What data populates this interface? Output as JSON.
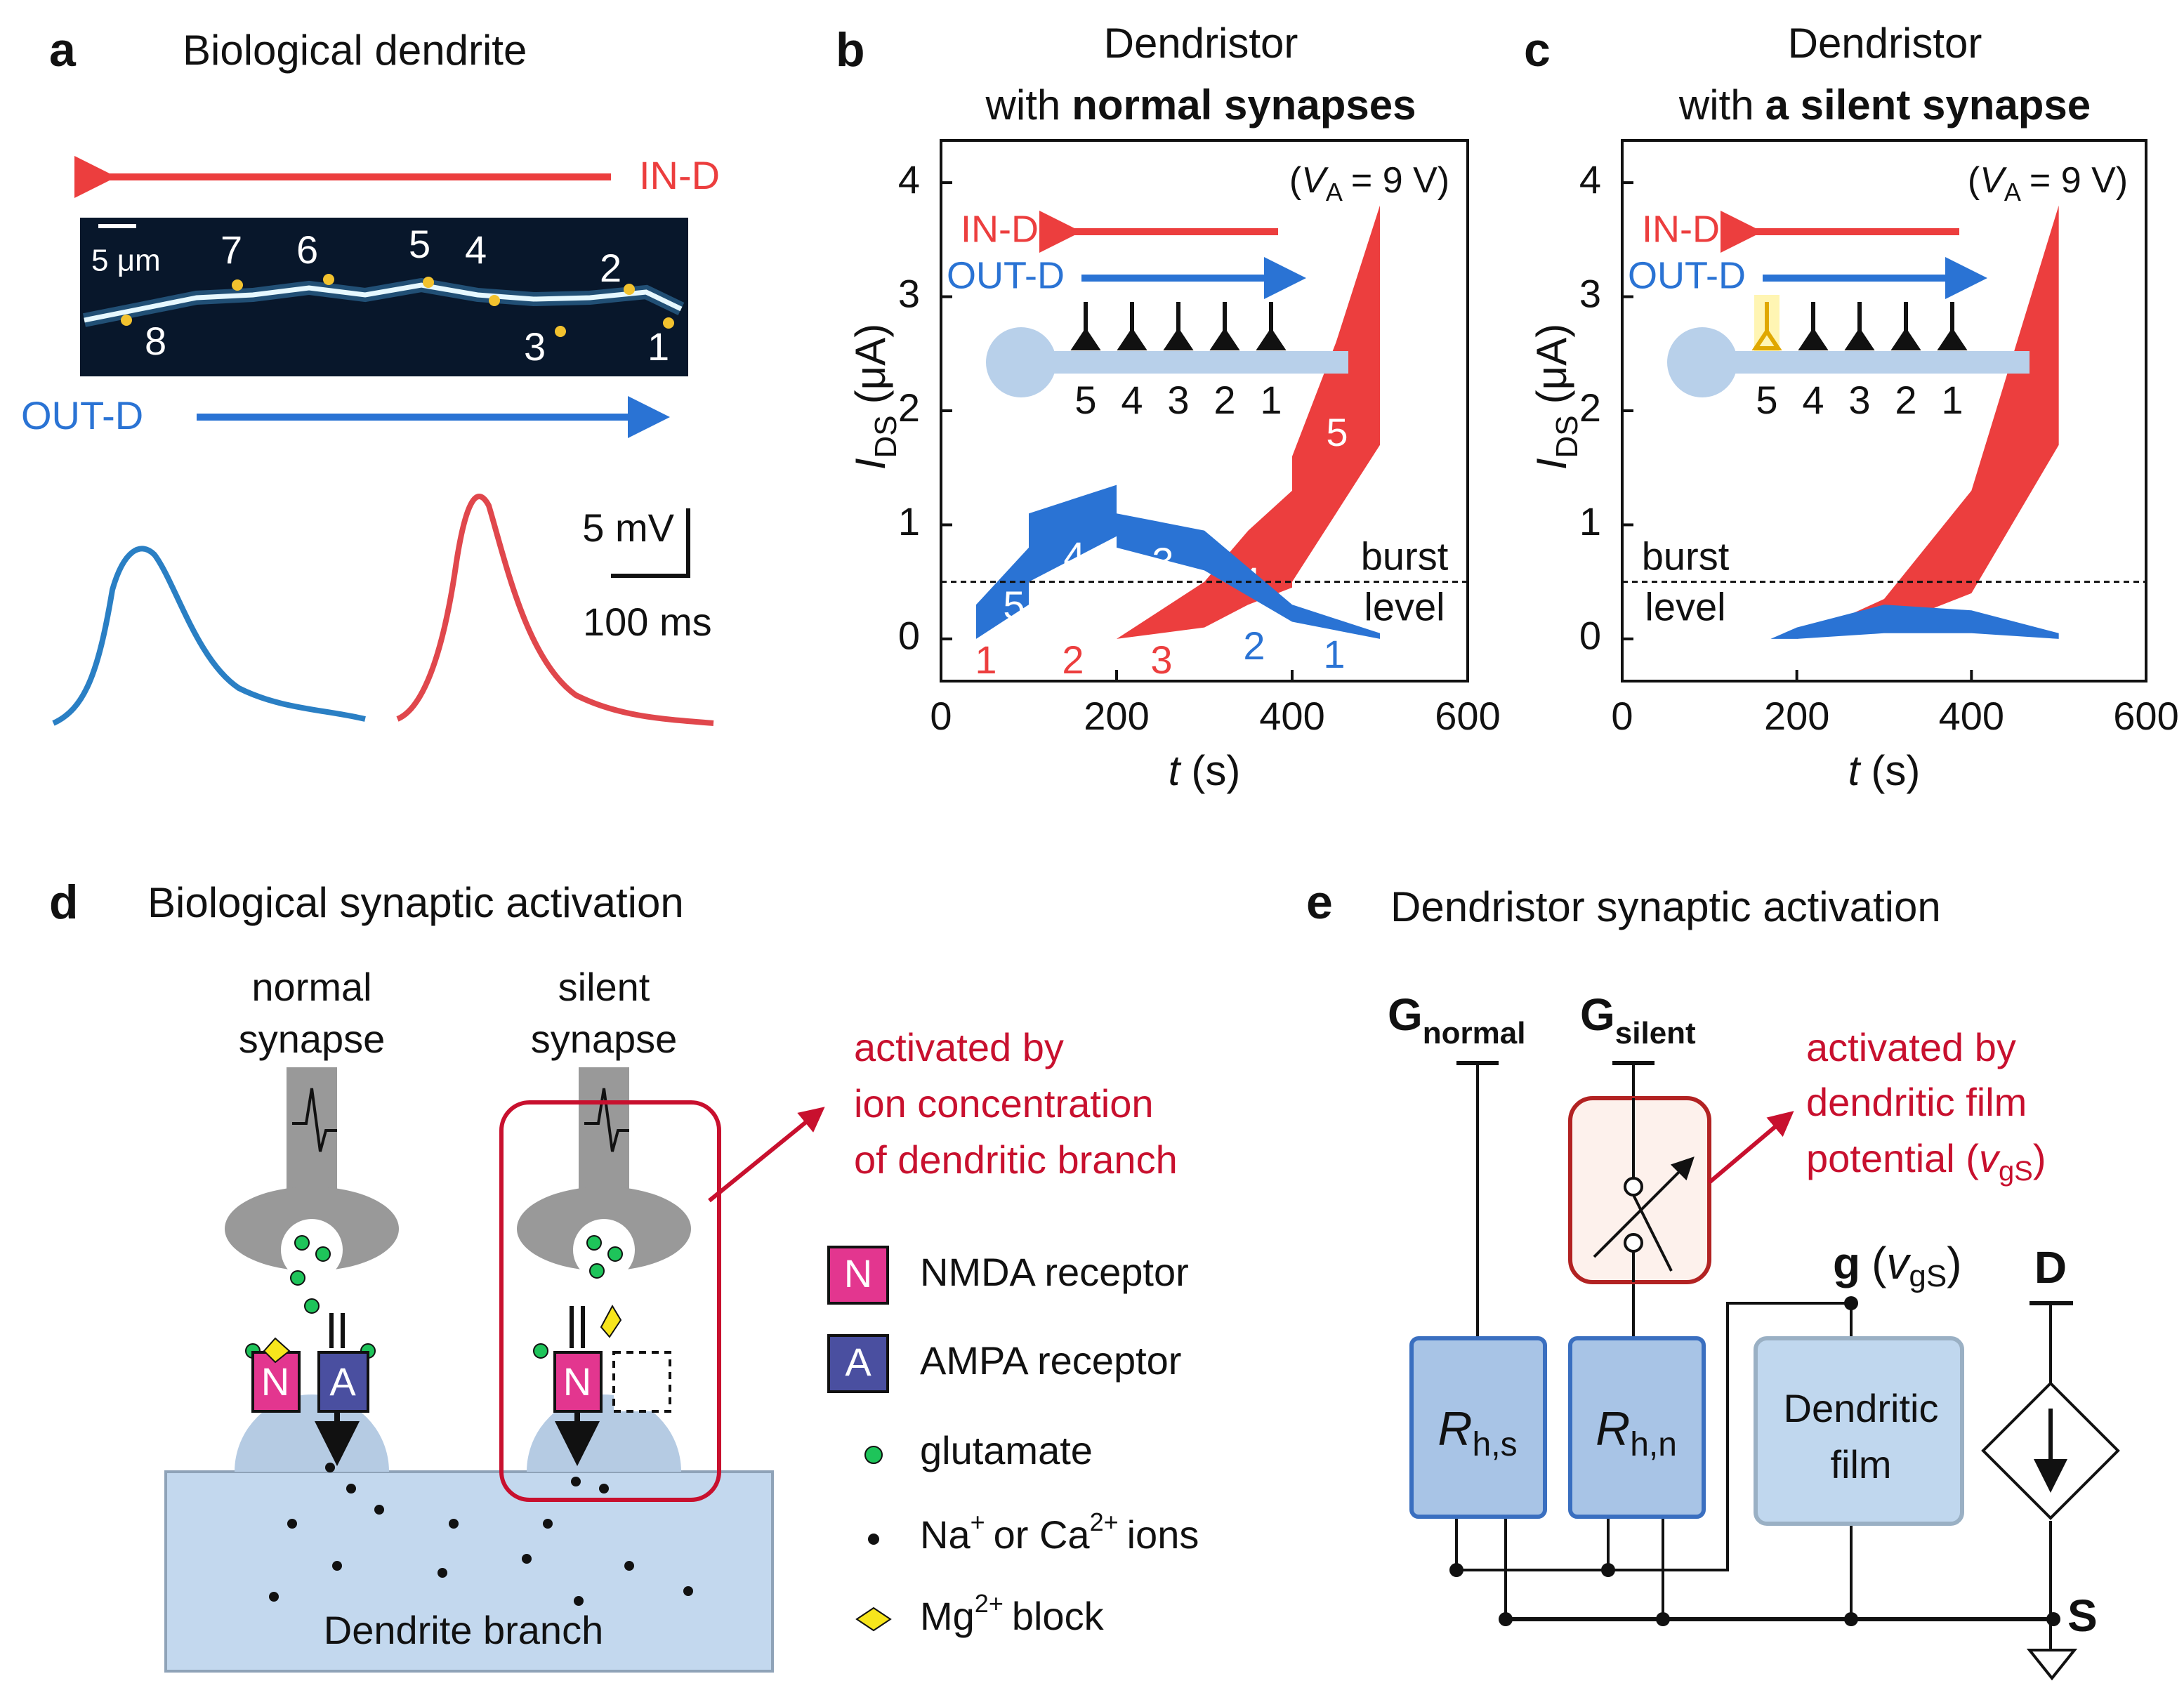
{
  "panel_a": {
    "letter": "a",
    "title": "Biological dendrite",
    "in_d": "IN-D",
    "out_d": "OUT-D",
    "scale": "5 μm",
    "spine_labels": [
      "1",
      "2",
      "3",
      "4",
      "5",
      "6",
      "7",
      "8"
    ],
    "scale_v": "5 mV",
    "scale_t": "100 ms"
  },
  "chart_data": [
    {
      "type": "area",
      "letter": "b",
      "title": "Dendristor",
      "subtitle_prefix": "with",
      "subtitle_bold": "normal synapses",
      "ylabel": {
        "symbol": "I",
        "sub": "DS",
        "unit": "(μA)"
      },
      "xlabel": {
        "symbol": "t",
        "unit": "(s)"
      },
      "annotation": {
        "prefix": "(",
        "symbol": "V",
        "sub": "A",
        "rest": "= 9 V)"
      },
      "xlim": [
        0,
        600
      ],
      "ylim": [
        -0.37,
        4.37
      ],
      "xticks": [
        0,
        200,
        400,
        600
      ],
      "yticks": [
        0,
        1,
        2,
        3,
        4
      ],
      "burst_level": 0.5,
      "burst_label": [
        "burst",
        "level"
      ],
      "inset": {
        "in_d": "IN-D",
        "out_d": "OUT-D",
        "synapses": [
          "5",
          "4",
          "3",
          "2",
          "1"
        ],
        "silent_synapse": false
      },
      "series": [
        {
          "name": "IN-D",
          "color": "#ec3e3e",
          "x": [
            200,
            300,
            350,
            400,
            400,
            450,
            500
          ],
          "upper": [
            0,
            0.5,
            0.95,
            1.3,
            1.6,
            2.6,
            3.8
          ],
          "lower": [
            0,
            0.1,
            0.3,
            0.45,
            0.5,
            1.1,
            1.7
          ],
          "labels": [
            "1",
            "2",
            "3",
            "4",
            "5"
          ]
        },
        {
          "name": "OUT-D",
          "color": "#2a73d4",
          "x": [
            40,
            100,
            100,
            200,
            200,
            300,
            400,
            500
          ],
          "upper": [
            0.3,
            0.8,
            1.1,
            1.35,
            1.1,
            0.95,
            0.3,
            0.05
          ],
          "lower": [
            0,
            0.3,
            0.5,
            0.9,
            0.8,
            0.6,
            0.15,
            0
          ],
          "labels": [
            "1",
            "2",
            "3",
            "4",
            "5"
          ]
        }
      ]
    },
    {
      "type": "area",
      "letter": "c",
      "title": "Dendristor",
      "subtitle_prefix": "with",
      "subtitle_bold": "a silent synapse",
      "ylabel": {
        "symbol": "I",
        "sub": "DS",
        "unit": "(μA)"
      },
      "xlabel": {
        "symbol": "t",
        "unit": "(s)"
      },
      "annotation": {
        "prefix": "(",
        "symbol": "V",
        "sub": "A",
        "rest": "= 9 V)"
      },
      "xlim": [
        0,
        600
      ],
      "ylim": [
        -0.37,
        4.37
      ],
      "xticks": [
        0,
        200,
        400,
        600
      ],
      "yticks": [
        0,
        1,
        2,
        3,
        4
      ],
      "burst_level": 0.5,
      "burst_label": [
        "burst",
        "level"
      ],
      "inset": {
        "in_d": "IN-D",
        "out_d": "OUT-D",
        "synapses": [
          "5",
          "4",
          "3",
          "2",
          "1"
        ],
        "silent_synapse": true
      },
      "series": [
        {
          "name": "IN-D",
          "color": "#ec3e3e",
          "x": [
            200,
            300,
            400,
            500
          ],
          "upper": [
            0,
            0.35,
            1.3,
            3.8
          ],
          "lower": [
            0,
            0.1,
            0.4,
            1.7
          ]
        },
        {
          "name": "OUT-D",
          "color": "#2a73d4",
          "x": [
            170,
            200,
            300,
            400,
            500
          ],
          "upper": [
            0,
            0.1,
            0.3,
            0.25,
            0.05
          ],
          "lower": [
            0,
            0,
            0.05,
            0.05,
            0
          ]
        }
      ]
    }
  ],
  "panel_d": {
    "letter": "d",
    "title": "Biological synaptic activation",
    "normal": [
      "normal",
      "synapse"
    ],
    "silent": [
      "silent",
      "synapse"
    ],
    "annotation": [
      "activated by",
      "ion concentration",
      "of dendritic branch"
    ],
    "n": "N",
    "a": "A",
    "legend": {
      "nmda": "NMDA receptor",
      "ampa": "AMPA receptor",
      "glutamate": "glutamate",
      "ions": {
        "a": "Na",
        "a_sup": "+",
        "mid": "or Ca",
        "b_sup": "2+",
        "end": "ions"
      },
      "mg": {
        "a": "Mg",
        "sup": "2+",
        "end": "block"
      }
    },
    "branch": "Dendrite branch"
  },
  "panel_e": {
    "letter": "e",
    "title": "Dendristor synaptic activation",
    "g_normal": {
      "g": "G",
      "sub": "normal"
    },
    "g_silent": {
      "g": "G",
      "sub": "silent"
    },
    "annotation": [
      "activated by",
      "dendritic film",
      "potential ("
    ],
    "ann_v": "v",
    "ann_sub": "gS",
    "ann_end": ")",
    "rhs": {
      "r": "R",
      "sub": "h,s"
    },
    "rhn": {
      "r": "R",
      "sub": "h,n"
    },
    "film": [
      "Dendritic",
      "film"
    ],
    "gate": {
      "g": "g",
      "open": "(",
      "v": "v",
      "sub": "gS",
      "close": ")"
    },
    "d": "D",
    "s": "S"
  }
}
